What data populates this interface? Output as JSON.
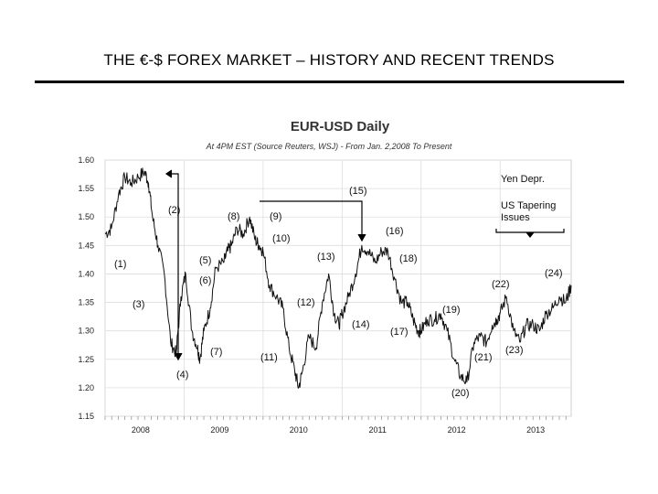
{
  "slide": {
    "title": "THE €-$ FOREX MARKET – HISTORY AND RECENT TRENDS"
  },
  "chart_data": {
    "type": "line",
    "title": "EUR-USD Daily",
    "subtitle": "At 4PM EST (Source Reuters, WSJ) - From Jan. 2,2008 To Present",
    "xlabel": "",
    "ylabel": "",
    "ylim": [
      1.15,
      1.6
    ],
    "y_ticks": [
      "1.60",
      "1.55",
      "1.50",
      "1.45",
      "1.40",
      "1.35",
      "1.30",
      "1.25",
      "1.20",
      "1.15"
    ],
    "x_ticks": [
      "2008",
      "2009",
      "2010",
      "2011",
      "2012",
      "2013"
    ],
    "xlim": [
      2008.0,
      2013.9
    ],
    "grid": true,
    "series": [
      {
        "x": [
          2008.0,
          2008.08,
          2008.17,
          2008.25,
          2008.33,
          2008.42,
          2008.5,
          2008.55,
          2008.6,
          2008.67,
          2008.75,
          2008.83,
          2008.9,
          2008.96,
          2009.02,
          2009.1,
          2009.17,
          2009.2,
          2009.25,
          2009.33,
          2009.4,
          2009.5,
          2009.55,
          2009.6,
          2009.67,
          2009.75,
          2009.83,
          2009.9,
          2009.95,
          2010.0,
          2010.08,
          2010.17,
          2010.25,
          2010.33,
          2010.4,
          2010.45,
          2010.5,
          2010.58,
          2010.67,
          2010.75,
          2010.83,
          2010.9,
          2010.96,
          2011.0,
          2011.08,
          2011.17,
          2011.25,
          2011.33,
          2011.42,
          2011.5,
          2011.58,
          2011.67,
          2011.75,
          2011.83,
          2011.9,
          2011.96,
          2012.0,
          2012.08,
          2012.17,
          2012.25,
          2012.33,
          2012.42,
          2012.5,
          2012.58,
          2012.67,
          2012.75,
          2012.83,
          2012.9,
          2012.96,
          2013.0,
          2013.08,
          2013.17,
          2013.25,
          2013.33,
          2013.42,
          2013.5,
          2013.58,
          2013.67,
          2013.75,
          2013.83,
          2013.9
        ],
        "y": [
          1.47,
          1.48,
          1.54,
          1.57,
          1.56,
          1.57,
          1.58,
          1.56,
          1.5,
          1.45,
          1.4,
          1.28,
          1.26,
          1.36,
          1.4,
          1.3,
          1.27,
          1.25,
          1.3,
          1.34,
          1.41,
          1.42,
          1.44,
          1.45,
          1.48,
          1.47,
          1.5,
          1.46,
          1.45,
          1.44,
          1.38,
          1.36,
          1.34,
          1.27,
          1.23,
          1.2,
          1.23,
          1.29,
          1.27,
          1.35,
          1.4,
          1.33,
          1.31,
          1.33,
          1.36,
          1.4,
          1.45,
          1.44,
          1.42,
          1.44,
          1.44,
          1.39,
          1.35,
          1.35,
          1.32,
          1.3,
          1.3,
          1.32,
          1.32,
          1.33,
          1.3,
          1.25,
          1.22,
          1.21,
          1.28,
          1.29,
          1.28,
          1.31,
          1.32,
          1.33,
          1.36,
          1.3,
          1.28,
          1.31,
          1.31,
          1.3,
          1.33,
          1.34,
          1.36,
          1.35,
          1.38
        ]
      }
    ],
    "annotations": [
      "(1)",
      "(2)",
      "(3)",
      "(4)",
      "(5)",
      "(6)",
      "(7)",
      "(8)",
      "(9)",
      "(10)",
      "(11)",
      "(12)",
      "(13)",
      "(14)",
      "(15)",
      "(16)",
      "(17)",
      "(18)",
      "(19)",
      "(20)",
      "(21)",
      "(22)",
      "(23)",
      "(24)",
      "Yen Depr.",
      "US Tapering",
      "Issues"
    ]
  }
}
